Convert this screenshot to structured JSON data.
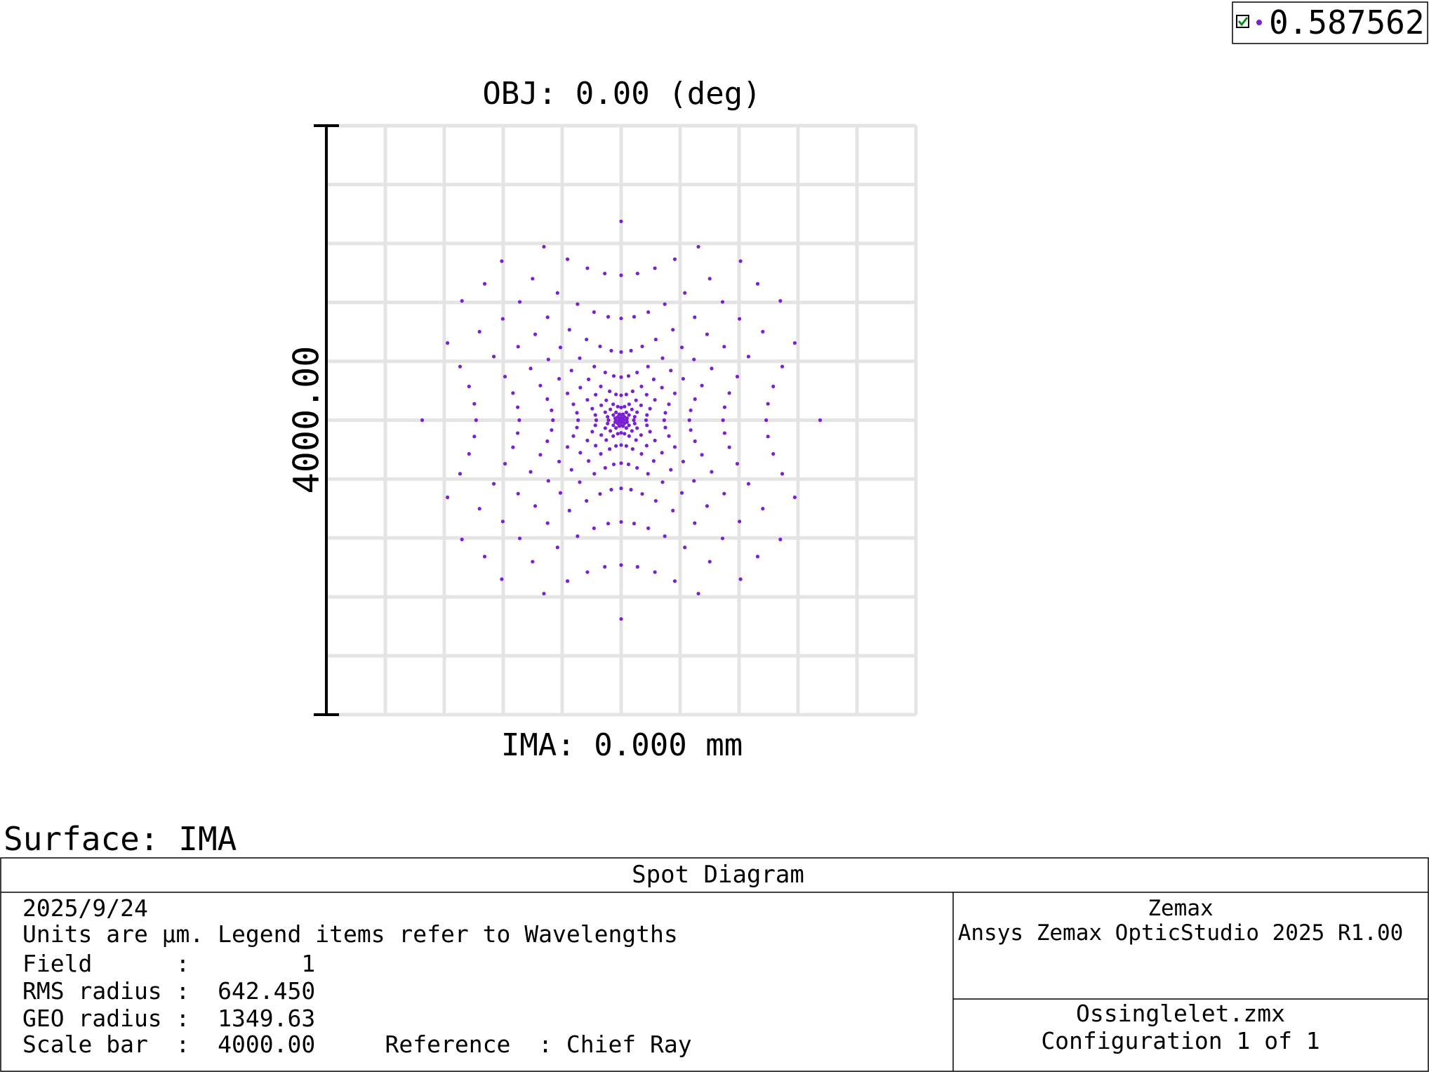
{
  "chart_data": {
    "type": "scatter",
    "title": "OBJ: 0.00 (deg)",
    "xlabel": "IMA: 0.000 mm",
    "scale_bar": {
      "value": 4000,
      "label": "4000.00"
    },
    "xlim": [
      -2000,
      2000
    ],
    "ylim": [
      -2000,
      2000
    ],
    "xticks": [
      -2000,
      -1600,
      -1200,
      -800,
      -400,
      0,
      400,
      800,
      1200,
      1600,
      2000
    ],
    "yticks": [
      -2000,
      -1600,
      -1200,
      -800,
      -400,
      0,
      400,
      800,
      1200,
      1600,
      2000
    ],
    "grid": true,
    "legend": "top-right",
    "series": [
      {
        "name": "0.587562",
        "color": "#7a1fd2",
        "x": [
          0,
          -524,
          -364,
          -229,
          -111,
          0,
          111,
          229,
          364,
          524,
          -810,
          -601,
          -432,
          -296,
          -184,
          -88,
          0,
          88,
          184,
          296,
          432,
          601,
          810,
          -926,
          -688,
          -499,
          -351,
          -235,
          -143,
          -67,
          0,
          67,
          143,
          235,
          351,
          499,
          688,
          926,
          -1080,
          -803,
          -583,
          -412,
          -281,
          -182,
          -108,
          -50,
          0,
          50,
          108,
          182,
          281,
          412,
          583,
          803,
          1080,
          -961,
          -699,
          -494,
          -337,
          -221,
          -138,
          -78,
          -35,
          0,
          35,
          78,
          138,
          221,
          337,
          494,
          699,
          961,
          -1178,
          -864,
          -614,
          -421,
          -277,
          -173,
          -101,
          -54,
          -23,
          0,
          23,
          54,
          101,
          173,
          277,
          421,
          614,
          864,
          1178,
          -1093,
          -788,
          -548,
          -364,
          -229,
          -135,
          -73,
          -35,
          -13,
          0,
          13,
          35,
          73,
          135,
          229,
          364,
          548,
          788,
          1093,
          -1032,
          -734,
          -501,
          -324,
          -196,
          -108,
          -53,
          -22,
          -7,
          0,
          7,
          22,
          53,
          108,
          196,
          324,
          501,
          734,
          1032,
          -996,
          -702,
          -472,
          -300,
          -175,
          -92,
          -40,
          -13,
          -3,
          0,
          3,
          13,
          40,
          92,
          175,
          300,
          472,
          702,
          996,
          -1350,
          -984,
          -691,
          -463,
          -292,
          -169,
          -86,
          -36,
          -11,
          -1,
          0,
          1,
          11,
          36,
          86,
          169,
          292,
          463,
          691,
          984,
          1350,
          -996,
          -702,
          -472,
          -300,
          -175,
          -92,
          -40,
          -13,
          -3,
          0,
          3,
          13,
          40,
          92,
          175,
          300,
          472,
          702,
          996,
          -1032,
          -734,
          -501,
          -324,
          -196,
          -108,
          -53,
          -22,
          -7,
          0,
          7,
          22,
          53,
          108,
          196,
          324,
          501,
          734,
          1032,
          -1093,
          -788,
          -548,
          -364,
          -229,
          -135,
          -73,
          -35,
          -13,
          0,
          13,
          35,
          73,
          135,
          229,
          364,
          548,
          788,
          1093,
          -1178,
          -864,
          -614,
          -421,
          -277,
          -173,
          -101,
          -54,
          -23,
          0,
          23,
          54,
          101,
          173,
          277,
          421,
          614,
          864,
          1178,
          -961,
          -699,
          -494,
          -337,
          -221,
          -138,
          -78,
          -35,
          0,
          35,
          78,
          138,
          221,
          337,
          494,
          699,
          961,
          -1080,
          -803,
          -583,
          -412,
          -281,
          -182,
          -108,
          -50,
          0,
          50,
          108,
          182,
          281,
          412,
          583,
          803,
          1080,
          -926,
          -688,
          -499,
          -351,
          -235,
          -143,
          -67,
          0,
          67,
          143,
          235,
          351,
          499,
          688,
          926,
          -810,
          -601,
          -432,
          -296,
          -184,
          -88,
          0,
          88,
          184,
          296,
          432,
          601,
          810,
          -524,
          -364,
          -229,
          -111,
          0,
          111,
          229,
          364,
          524,
          0
        ],
        "y": [
          1350,
          1178,
          1093,
          1032,
          996,
          984,
          996,
          1032,
          1093,
          1178,
          1080,
          961,
          864,
          788,
          734,
          702,
          691,
          702,
          734,
          788,
          864,
          961,
          1080,
          926,
          803,
          699,
          614,
          548,
          501,
          472,
          463,
          472,
          501,
          548,
          614,
          699,
          803,
          926,
          810,
          688,
          583,
          494,
          421,
          364,
          324,
          300,
          292,
          300,
          324,
          364,
          421,
          494,
          583,
          688,
          810,
          601,
          499,
          412,
          337,
          277,
          229,
          196,
          175,
          169,
          175,
          196,
          229,
          277,
          337,
          412,
          499,
          601,
          524,
          432,
          351,
          281,
          221,
          173,
          135,
          108,
          92,
          86,
          92,
          108,
          135,
          173,
          221,
          281,
          351,
          432,
          524,
          364,
          296,
          235,
          182,
          138,
          101,
          73,
          53,
          40,
          36,
          40,
          53,
          73,
          101,
          138,
          182,
          235,
          296,
          364,
          229,
          184,
          143,
          108,
          78,
          54,
          35,
          22,
          13,
          11,
          13,
          22,
          35,
          54,
          78,
          108,
          143,
          184,
          229,
          111,
          88,
          67,
          50,
          35,
          23,
          13,
          7,
          3,
          1,
          3,
          7,
          13,
          23,
          35,
          50,
          67,
          88,
          111,
          0,
          0,
          0,
          0,
          0,
          0,
          0,
          0,
          0,
          0,
          0,
          0,
          0,
          0,
          0,
          0,
          0,
          0,
          0,
          0,
          0,
          -111,
          -88,
          -67,
          -50,
          -35,
          -23,
          -13,
          -7,
          -3,
          -1,
          -3,
          -7,
          -13,
          -23,
          -35,
          -50,
          -67,
          -88,
          -111,
          -229,
          -184,
          -143,
          -108,
          -78,
          -54,
          -35,
          -22,
          -13,
          -11,
          -13,
          -22,
          -35,
          -54,
          -78,
          -108,
          -143,
          -184,
          -229,
          -364,
          -296,
          -235,
          -182,
          -138,
          -101,
          -73,
          -53,
          -40,
          -36,
          -40,
          -53,
          -73,
          -101,
          -138,
          -182,
          -235,
          -296,
          -364,
          -524,
          -432,
          -351,
          -281,
          -221,
          -173,
          -135,
          -108,
          -92,
          -86,
          -92,
          -108,
          -135,
          -173,
          -221,
          -281,
          -351,
          -432,
          -524,
          -601,
          -499,
          -412,
          -337,
          -277,
          -229,
          -196,
          -175,
          -169,
          -175,
          -196,
          -229,
          -277,
          -337,
          -412,
          -499,
          -601,
          -810,
          -688,
          -583,
          -494,
          -421,
          -364,
          -324,
          -300,
          -292,
          -300,
          -324,
          -364,
          -421,
          -494,
          -583,
          -688,
          -810,
          -926,
          -803,
          -699,
          -614,
          -548,
          -501,
          -472,
          -463,
          -472,
          -501,
          -548,
          -614,
          -699,
          -803,
          -926,
          -1080,
          -961,
          -864,
          -788,
          -734,
          -702,
          -691,
          -702,
          -734,
          -788,
          -864,
          -961,
          -1080,
          -1178,
          -1093,
          -1032,
          -996,
          -984,
          -996,
          -1032,
          -1093,
          -1178,
          -1350
        ]
      }
    ]
  },
  "surface": "Surface: IMA",
  "footer": {
    "title": "Spot Diagram",
    "lines": [
      "2025/9/24",
      "Units are µm. Legend items refer to Wavelengths",
      "Field      :        1",
      "RMS radius :  642.450",
      "GEO radius :  1349.63",
      "Scale bar  :  4000.00     Reference  : Chief Ray"
    ],
    "company": "Zemax",
    "product": "Ansys Zemax OpticStudio 2025 R1.00",
    "file": "Ossinglelet.zmx",
    "configuration": "Configuration 1 of 1"
  }
}
